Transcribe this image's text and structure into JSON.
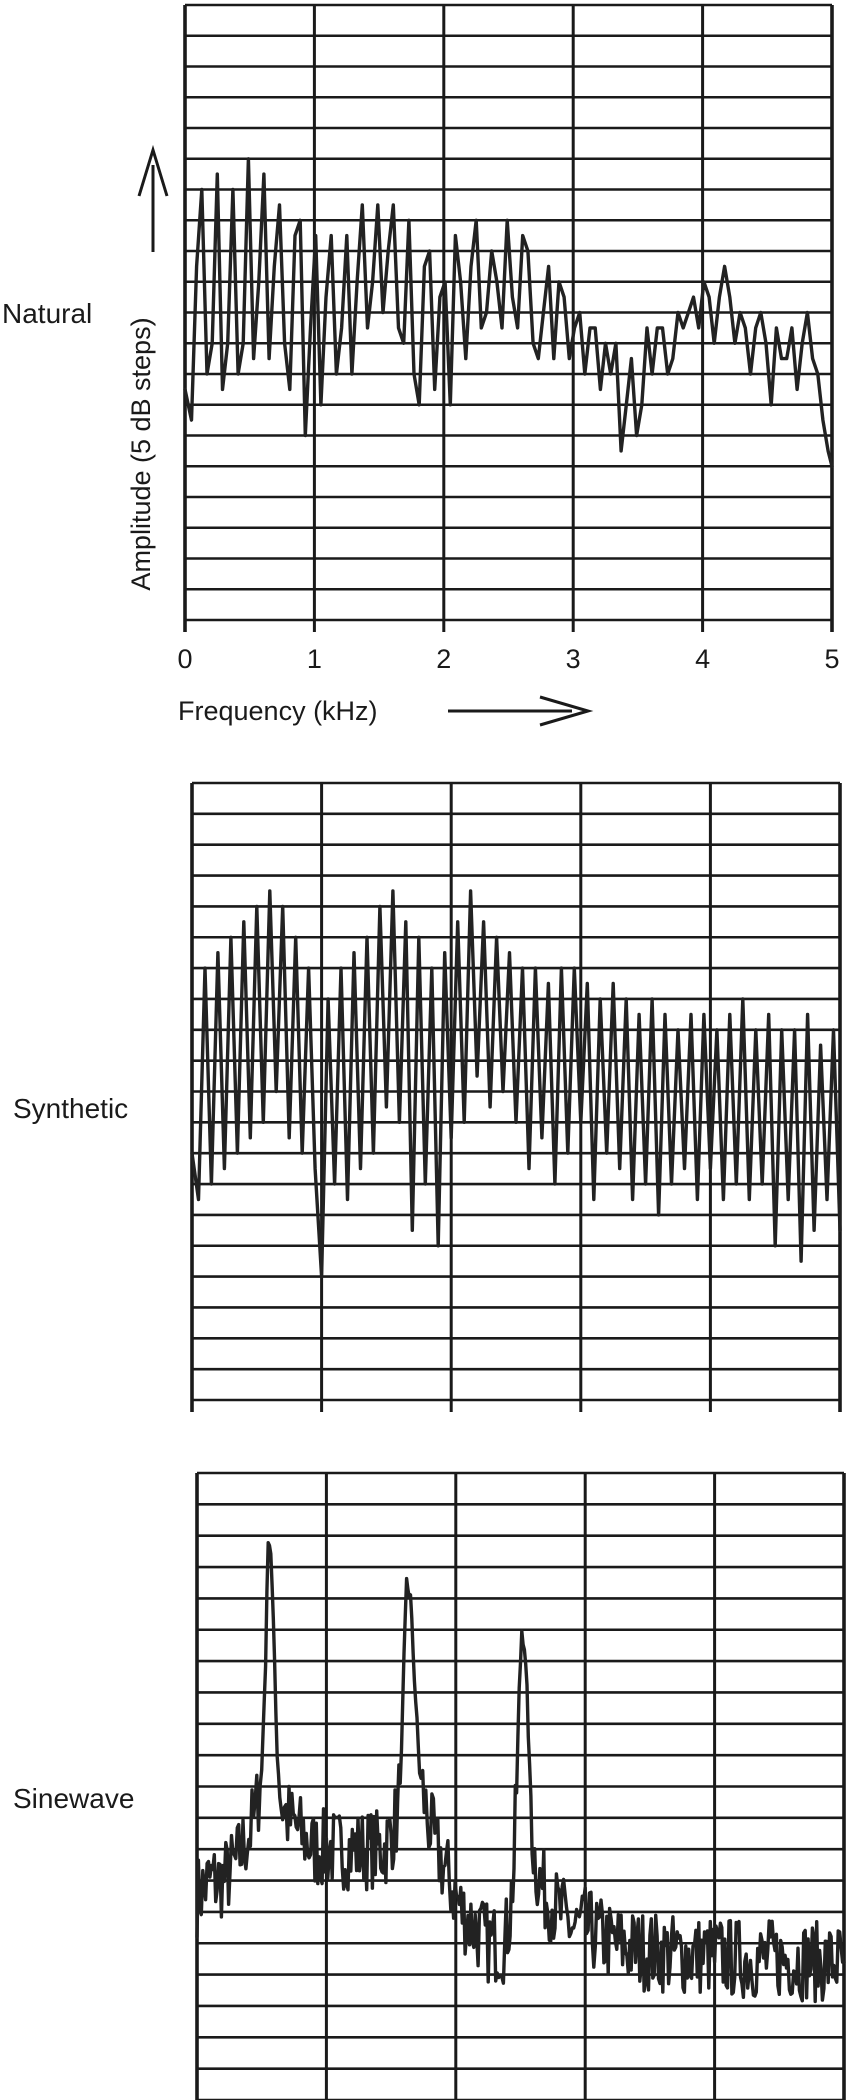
{
  "chart_data": [
    {
      "type": "line",
      "panel_label": "Natural",
      "xlabel": "Frequency (kHz)",
      "ylabel": "Amplitude (5 dB steps)",
      "xlim": [
        0,
        5
      ],
      "x_ticks": [
        "0",
        "1",
        "2",
        "3",
        "4",
        "5"
      ],
      "y_steps": 20,
      "grid": true,
      "series": [
        {
          "x": [
            0,
            0.05,
            0.09,
            0.13,
            0.17,
            0.21,
            0.25,
            0.29,
            0.33,
            0.37,
            0.41,
            0.45,
            0.49,
            0.53,
            0.57,
            0.61,
            0.65,
            0.69,
            0.73,
            0.77,
            0.81,
            0.85,
            0.89,
            0.93,
            0.97,
            1.01,
            1.05,
            1.09,
            1.13,
            1.17,
            1.21,
            1.25,
            1.29,
            1.33,
            1.37,
            1.41,
            1.45,
            1.49,
            1.53,
            1.57,
            1.61,
            1.65,
            1.69,
            1.73,
            1.77,
            1.81,
            1.85,
            1.89,
            1.93,
            1.97,
            2.01,
            2.05,
            2.09,
            2.13,
            2.17,
            2.21,
            2.25,
            2.29,
            2.33,
            2.37,
            2.41,
            2.45,
            2.49,
            2.53,
            2.57,
            2.61,
            2.65,
            2.69,
            2.73,
            2.77,
            2.81,
            2.85,
            2.89,
            2.93,
            2.97,
            3.01,
            3.05,
            3.09,
            3.13,
            3.17,
            3.21,
            3.25,
            3.29,
            3.33,
            3.37,
            3.41,
            3.45,
            3.49,
            3.53,
            3.57,
            3.61,
            3.65,
            3.69,
            3.73,
            3.77,
            3.81,
            3.85,
            3.89,
            3.93,
            3.97,
            4.01,
            4.05,
            4.09,
            4.13,
            4.17,
            4.21,
            4.25,
            4.29,
            4.33,
            4.37,
            4.41,
            4.45,
            4.49,
            4.53,
            4.57,
            4.61,
            4.65,
            4.69,
            4.73,
            4.77,
            4.81,
            4.85,
            4.89,
            4.93,
            4.97,
            5.0
          ],
          "y": [
            7.5,
            6.5,
            11.5,
            14.0,
            8.0,
            9.0,
            14.5,
            7.5,
            9.0,
            14.0,
            8.0,
            9.0,
            15.0,
            8.5,
            11.0,
            14.5,
            8.5,
            11.5,
            13.5,
            9.0,
            7.5,
            12.5,
            13.0,
            6.0,
            9.5,
            12.5,
            7.0,
            10.5,
            12.5,
            8.0,
            9.5,
            12.5,
            8.0,
            11.0,
            13.5,
            9.5,
            11.0,
            13.5,
            10.0,
            12.0,
            13.5,
            9.5,
            9.0,
            13.0,
            8.0,
            7.0,
            11.5,
            12.0,
            7.5,
            10.5,
            11.0,
            7.0,
            12.5,
            11.0,
            8.5,
            11.5,
            13.0,
            9.5,
            10.0,
            12.0,
            11.0,
            9.5,
            13.0,
            10.5,
            9.5,
            12.5,
            12.0,
            9.0,
            8.5,
            10.0,
            11.5,
            8.5,
            11.0,
            10.5,
            8.5,
            9.5,
            10.0,
            8.0,
            9.5,
            9.5,
            7.5,
            9.0,
            8.0,
            9.0,
            5.5,
            7.0,
            8.5,
            6.0,
            7.0,
            9.5,
            8.0,
            9.5,
            9.5,
            8.0,
            8.5,
            10.0,
            9.5,
            10.0,
            10.5,
            9.5,
            11.0,
            10.5,
            9.0,
            10.5,
            11.5,
            10.5,
            9.0,
            10.0,
            9.5,
            8.0,
            9.5,
            10.0,
            9.0,
            7.0,
            9.5,
            8.5,
            8.5,
            9.5,
            7.5,
            9.0,
            10.0,
            8.5,
            8.0,
            6.5,
            5.5,
            5.0
          ]
        }
      ]
    },
    {
      "type": "line",
      "panel_label": "Synthetic",
      "xlim": [
        0,
        5
      ],
      "y_steps": 20,
      "grid": true,
      "series": [
        {
          "x": [
            0,
            0.05,
            0.1,
            0.15,
            0.2,
            0.25,
            0.3,
            0.35,
            0.4,
            0.45,
            0.5,
            0.55,
            0.6,
            0.65,
            0.7,
            0.75,
            0.8,
            0.85,
            0.9,
            0.95,
            1.0,
            1.05,
            1.1,
            1.15,
            1.2,
            1.25,
            1.3,
            1.35,
            1.4,
            1.45,
            1.5,
            1.55,
            1.6,
            1.65,
            1.7,
            1.75,
            1.8,
            1.85,
            1.9,
            1.95,
            2.0,
            2.05,
            2.1,
            2.15,
            2.2,
            2.25,
            2.3,
            2.35,
            2.4,
            2.45,
            2.5,
            2.55,
            2.6,
            2.65,
            2.7,
            2.75,
            2.8,
            2.85,
            2.9,
            2.95,
            3.0,
            3.05,
            3.1,
            3.15,
            3.2,
            3.25,
            3.3,
            3.35,
            3.4,
            3.45,
            3.5,
            3.55,
            3.6,
            3.65,
            3.7,
            3.75,
            3.8,
            3.85,
            3.9,
            3.95,
            4.0,
            4.05,
            4.1,
            4.15,
            4.2,
            4.25,
            4.3,
            4.35,
            4.4,
            4.45,
            4.5,
            4.55,
            4.6,
            4.65,
            4.7,
            4.75,
            4.8,
            4.85,
            4.9,
            4.95,
            5.0
          ],
          "y": [
            8.0,
            6.5,
            14.0,
            7.0,
            14.5,
            7.5,
            15.0,
            8.0,
            15.5,
            8.5,
            16.0,
            9.0,
            16.5,
            10.0,
            16.0,
            8.5,
            15.0,
            8.0,
            14.0,
            7.5,
            4.0,
            13.0,
            7.0,
            14.0,
            6.5,
            14.5,
            7.5,
            15.0,
            8.0,
            16.0,
            9.5,
            16.5,
            9.0,
            15.5,
            5.5,
            15.0,
            7.0,
            14.0,
            5.0,
            14.5,
            8.5,
            15.5,
            9.0,
            16.5,
            10.5,
            15.5,
            9.5,
            15.0,
            10.0,
            14.5,
            9.0,
            14.0,
            7.5,
            14.0,
            8.5,
            13.5,
            7.0,
            14.0,
            8.0,
            14.0,
            9.0,
            13.5,
            6.5,
            13.0,
            8.0,
            13.5,
            7.5,
            13.0,
            6.5,
            12.5,
            7.0,
            13.0,
            6.0,
            12.5,
            7.0,
            12.0,
            7.5,
            12.5,
            6.5,
            12.5,
            7.5,
            12.0,
            6.5,
            12.5,
            7.0,
            13.0,
            6.5,
            12.0,
            7.0,
            12.5,
            5.0,
            12.0,
            6.5,
            12.0,
            4.5,
            12.5,
            5.5,
            11.5,
            6.5,
            12.0,
            5.5
          ]
        }
      ]
    },
    {
      "type": "line",
      "panel_label": "Sinewave",
      "xlim": [
        0,
        5
      ],
      "y_steps": 20,
      "grid": true,
      "series": [
        {
          "x": [
            0,
            0.1,
            0.2,
            0.3,
            0.4,
            0.45,
            0.5,
            0.53,
            0.55,
            0.57,
            0.6,
            0.62,
            0.65,
            0.7,
            0.8,
            0.9,
            1.0,
            1.1,
            1.2,
            1.3,
            1.4,
            1.45,
            1.5,
            1.55,
            1.58,
            1.6,
            1.62,
            1.65,
            1.68,
            1.72,
            1.78,
            1.85,
            1.95,
            2.05,
            2.15,
            2.25,
            2.32,
            2.38,
            2.42,
            2.45,
            2.47,
            2.49,
            2.51,
            2.53,
            2.55,
            2.57,
            2.6,
            2.62,
            2.65,
            2.7,
            2.8,
            2.9,
            3.0,
            3.2,
            3.4,
            3.6,
            3.8,
            4.0,
            4.2,
            4.4,
            4.6,
            4.8,
            5.0
          ],
          "y": [
            6.5,
            7.0,
            7.0,
            7.5,
            8.5,
            9.0,
            10.5,
            14.0,
            18.0,
            17.5,
            14.0,
            11.0,
            9.5,
            9.0,
            8.5,
            8.0,
            8.0,
            8.0,
            8.0,
            8.0,
            8.0,
            8.0,
            8.5,
            9.0,
            11.0,
            14.0,
            16.5,
            16.0,
            13.5,
            10.5,
            9.0,
            8.0,
            7.0,
            6.0,
            5.5,
            5.0,
            5.0,
            5.0,
            6.0,
            7.5,
            10.0,
            13.0,
            15.0,
            14.5,
            13.0,
            10.5,
            8.0,
            7.5,
            7.0,
            6.5,
            6.0,
            5.5,
            5.5,
            5.0,
            4.8,
            4.7,
            4.6,
            4.6,
            4.5,
            4.5,
            4.5,
            4.4,
            4.4
          ]
        }
      ]
    }
  ]
}
